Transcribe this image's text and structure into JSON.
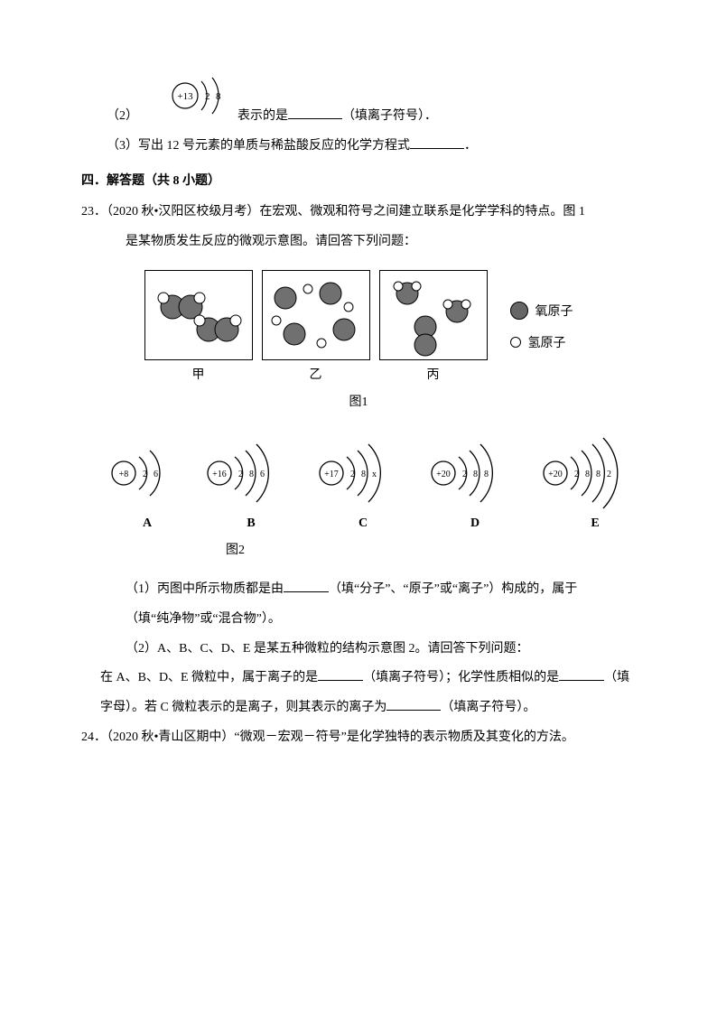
{
  "q2": {
    "prefix": "（2）",
    "atom": {
      "nucleus": "+13",
      "shells": [
        "2",
        "8"
      ]
    },
    "text": "表示的是",
    "suffix": "（填离子符号）．"
  },
  "q3": {
    "text": "（3）写出 12 号元素的单质与稀盐酸反应的化学方程式",
    "suffix": "．"
  },
  "section4": "四．解答题（共 8 小题）",
  "q23": {
    "header": "23．（2020 秋•汉阳区校级月考）在宏观、微观和符号之间建立联系是化学学科的特点。图 1",
    "header2": "是某物质发生反应的微观示意图。请回答下列问题：",
    "figure1": {
      "panels": [
        "甲",
        "乙",
        "丙"
      ],
      "legend": {
        "oxygen": "氧原子",
        "hydrogen": "氢原子"
      },
      "label": "图1"
    },
    "figure2": {
      "atoms": [
        {
          "nucleus": "+8",
          "shells": [
            "2",
            "6"
          ],
          "label": "A"
        },
        {
          "nucleus": "+16",
          "shells": [
            "2",
            "8",
            "6"
          ],
          "label": "B"
        },
        {
          "nucleus": "+17",
          "shells": [
            "2",
            "8",
            "x"
          ],
          "label": "C"
        },
        {
          "nucleus": "+20",
          "shells": [
            "2",
            "8",
            "8"
          ],
          "label": "D"
        },
        {
          "nucleus": "+20",
          "shells": [
            "2",
            "8",
            "8",
            "2"
          ],
          "label": "E"
        }
      ],
      "label": "图2"
    },
    "sub1_a": "（1）丙图中所示物质都是由",
    "sub1_b": "（填“分子”、“原子”或“离子”）构成的，属于",
    "sub1_c": "（填“纯净物”或“混合物”）。",
    "sub2_a": "（2）A、B、C、D、E 是某五种微粒的结构示意图 2。请回答下列问题：",
    "sub2_b": "在 A、B、D、E 微粒中，属于离子的是",
    "sub2_c": "（填离子符号）；化学性质相似的是",
    "sub2_d": "（填",
    "sub2_e": "字母）。若 C 微粒表示的是离子，则其表示的离子为",
    "sub2_f": "（填离子符号）。"
  },
  "q24": {
    "text": "24．（2020 秋•青山区期中）“微观－宏观－符号”是化学独特的表示物质及其变化的方法。"
  },
  "colors": {
    "oxygen_fill": "#707070",
    "hydrogen_fill": "#ffffff",
    "stroke": "#000000"
  }
}
